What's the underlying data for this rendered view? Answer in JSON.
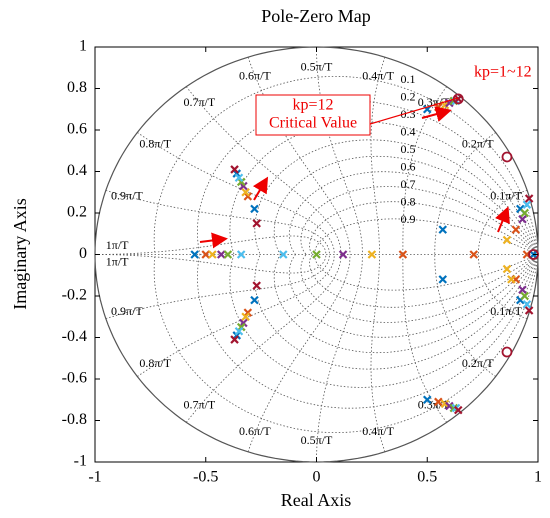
{
  "chart_data": {
    "type": "scatter",
    "title": "Pole-Zero Map",
    "x_label": "Real Axis",
    "y_label": "Imaginary Axis",
    "xlim": [
      -1,
      1
    ],
    "ylim": [
      -1,
      1
    ],
    "xticks": [
      -1,
      -0.5,
      0,
      0.5,
      1
    ],
    "yticks": [
      -1,
      -0.8,
      -0.6,
      -0.4,
      -0.2,
      0,
      0.2,
      0.4,
      0.6,
      0.8,
      1
    ],
    "zeta_lines": [
      0.1,
      0.2,
      0.3,
      0.4,
      0.5,
      0.6,
      0.7,
      0.8,
      0.9
    ],
    "wn_lines": [
      {
        "value": 0.1,
        "label": "0.1π/T"
      },
      {
        "value": 0.2,
        "label": "0.2π/T"
      },
      {
        "value": 0.3,
        "label": "0.3π/T"
      },
      {
        "value": 0.4,
        "label": "0.4π/T"
      },
      {
        "value": 0.5,
        "label": "0.5π/T"
      },
      {
        "value": 0.6,
        "label": "0.6π/T"
      },
      {
        "value": 0.7,
        "label": "0.7π/T"
      },
      {
        "value": 0.8,
        "label": "0.8π/T"
      },
      {
        "value": 0.9,
        "label": "0.9π/T"
      },
      {
        "value": 1,
        "label": "1π/T"
      }
    ],
    "annotations": [
      "kp=1~12",
      "kp=12",
      "Critical Value"
    ],
    "series": [
      {
        "color": "#0072bd",
        "x": [
          -0.55,
          0.57,
          0.57,
          -0.28,
          -0.28,
          0.98,
          0.5,
          0.5,
          -0.36,
          -0.36,
          0.92,
          0.92
        ],
        "y": [
          0,
          0.12,
          -0.12,
          0.22,
          -0.22,
          0,
          0.7,
          -0.7,
          0.39,
          -0.39,
          0.22,
          -0.22
        ]
      },
      {
        "color": "#d95319",
        "x": [
          -0.5,
          0.39,
          0.71,
          0.95,
          -0.31,
          -0.31,
          0.55,
          0.55,
          0.9,
          0.9
        ],
        "y": [
          0,
          0,
          0,
          0,
          0.28,
          -0.28,
          0.71,
          -0.71,
          0.12,
          -0.12
        ]
      },
      {
        "color": "#edb120",
        "x": [
          -0.47,
          0.25,
          0.86,
          0.86,
          -0.32,
          -0.32,
          0.58,
          0.58,
          0.88
        ],
        "y": [
          0,
          0,
          0.07,
          -0.07,
          0.3,
          -0.3,
          0.72,
          -0.72,
          -0.12
        ]
      },
      {
        "color": "#7e2f8e",
        "x": [
          -0.43,
          0.12,
          -0.33,
          -0.33,
          0.6,
          0.6,
          0.93,
          0.93
        ],
        "y": [
          0,
          0,
          0.33,
          -0.33,
          0.73,
          -0.73,
          0.17,
          -0.17
        ]
      },
      {
        "color": "#77ac30",
        "x": [
          -0.4,
          0,
          -0.34,
          -0.34,
          0.62,
          0.62,
          0.94,
          0.94
        ],
        "y": [
          0,
          0,
          0.35,
          -0.35,
          0.74,
          -0.74,
          0.2,
          -0.2
        ]
      },
      {
        "color": "#4dbeee",
        "x": [
          -0.34,
          -0.15,
          -0.35,
          -0.35,
          0.63,
          0.63,
          0.95,
          0.95
        ],
        "y": [
          0,
          0,
          0.37,
          -0.37,
          0.74,
          -0.74,
          0.24,
          -0.24
        ]
      },
      {
        "color": "#a2142f",
        "x": [
          -0.27,
          -0.27,
          -0.37,
          -0.37,
          0.64,
          0.64,
          0.96,
          0.96
        ],
        "y": [
          0.15,
          -0.15,
          0.41,
          -0.41,
          0.75,
          -0.75,
          0.27,
          -0.27
        ]
      }
    ],
    "zeros": {
      "color": "#a2142f",
      "x": [
        0.86,
        0.86,
        0.98,
        0.64
      ],
      "y": [
        0.47,
        -0.47,
        0,
        0.75
      ]
    }
  }
}
